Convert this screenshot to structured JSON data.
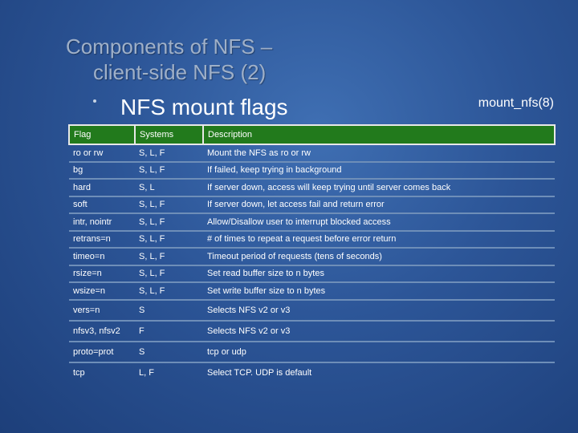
{
  "slide": {
    "title_line1": "Components of NFS –",
    "title_line2": "client-side NFS (2)",
    "subtitle": "NFS mount flags",
    "reference": "mount_nfs(8)"
  },
  "table": {
    "headers": [
      "Flag",
      "Systems",
      "Description"
    ],
    "rows": [
      [
        "ro or rw",
        "S, L, F",
        "Mount the NFS as ro or rw"
      ],
      [
        "bg",
        "S, L, F",
        "If failed, keep trying in background"
      ],
      [
        "hard",
        "S, L",
        "If server down, access will keep trying until server comes back"
      ],
      [
        "soft",
        "S, L, F",
        "If server down, let access fail and return error"
      ],
      [
        "intr, nointr",
        "S, L, F",
        "Allow/Disallow user to interrupt blocked access"
      ],
      [
        "retrans=n",
        "S, L, F",
        "# of times to repeat a request before error return"
      ],
      [
        "timeo=n",
        "S, L, F",
        "Timeout period of requests (tens of seconds)"
      ],
      [
        "rsize=n",
        "S, L, F",
        "Set read buffer size to n bytes"
      ],
      [
        "wsize=n",
        "S, L, F",
        "Set write buffer size to n bytes"
      ],
      [
        "vers=n",
        "S",
        "Selects NFS v2 or v3"
      ],
      [
        "nfsv3, nfsv2",
        "F",
        "Selects NFS v2 or v3"
      ],
      [
        "proto=prot",
        "S",
        "tcp or udp"
      ],
      [
        "tcp",
        "L, F",
        "Select TCP. UDP is default"
      ]
    ]
  }
}
